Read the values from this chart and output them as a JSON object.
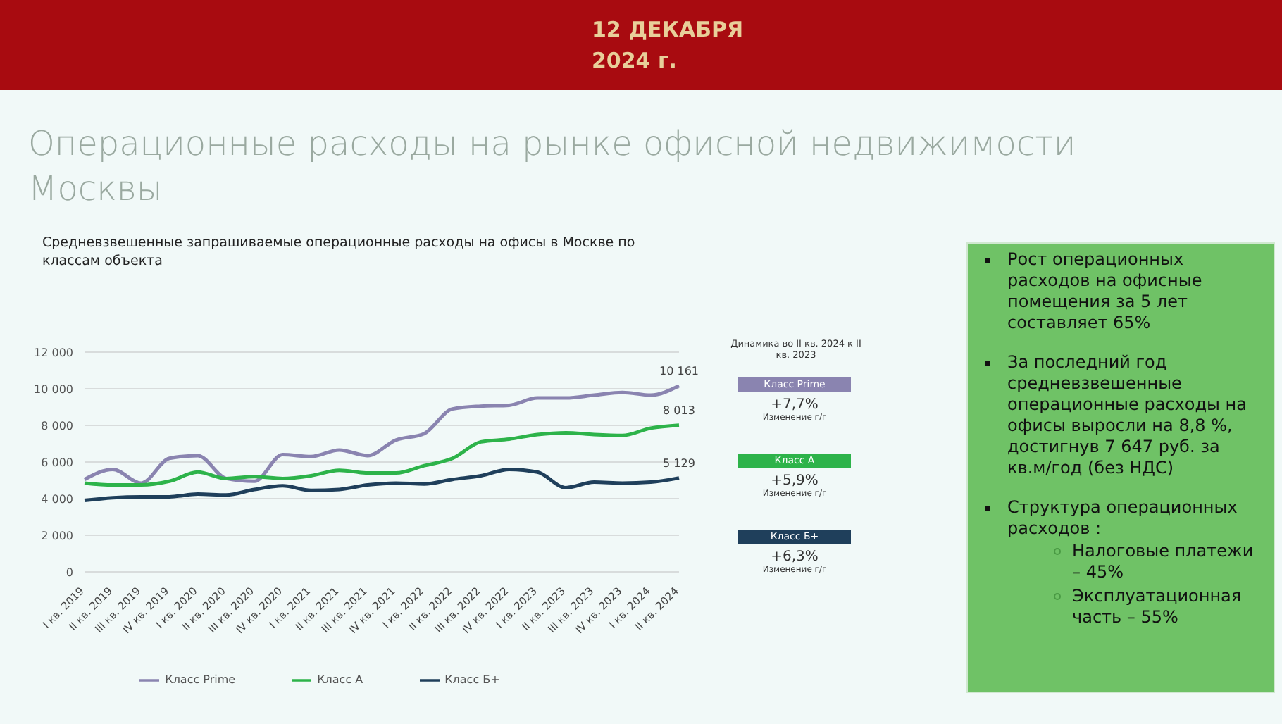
{
  "chart_data": {
    "type": "line",
    "title": "Операционные расходы на рынке офисной недвижимости Москвы",
    "subtitle": "Средневзвешенные запрашиваемые операционные расходы на офисы в Москве по классам объекта",
    "categories": [
      "I кв. 2019",
      "II кв. 2019",
      "III кв. 2019",
      "IV кв. 2019",
      "I кв. 2020",
      "II кв. 2020",
      "III кв. 2020",
      "IV кв. 2020",
      "I кв. 2021",
      "II кв. 2021",
      "III кв. 2021",
      "IV кв. 2021",
      "I кв. 2022",
      "II кв. 2022",
      "III кв. 2022",
      "IV кв. 2022",
      "I кв. 2023",
      "II кв. 2023",
      "III кв. 2023",
      "IV кв. 2023",
      "I кв. 2024",
      "II кв. 2024"
    ],
    "series": [
      {
        "name": "Класс Prime",
        "color": "#8a84b0",
        "values": [
          5050,
          5600,
          4850,
          6200,
          6350,
          5100,
          4950,
          6400,
          6300,
          6650,
          6350,
          7200,
          7550,
          8900,
          9050,
          9100,
          9500,
          9500,
          9650,
          9800,
          9650,
          10161
        ]
      },
      {
        "name": "Класс А",
        "color": "#2db34a",
        "values": [
          4850,
          4750,
          4750,
          4950,
          5450,
          5100,
          5200,
          5100,
          5250,
          5550,
          5400,
          5400,
          5800,
          6200,
          7100,
          7250,
          7500,
          7600,
          7500,
          7450,
          7850,
          8013
        ]
      },
      {
        "name": "Класс Б+",
        "color": "#1f3f5b",
        "values": [
          3900,
          4050,
          4100,
          4100,
          4250,
          4200,
          4500,
          4700,
          4450,
          4500,
          4750,
          4850,
          4800,
          5050,
          5250,
          5600,
          5450,
          4600,
          4900,
          4850,
          4900,
          5129
        ]
      }
    ],
    "ylim": [
      0,
      12000
    ],
    "yticks": [
      {
        "value": 0,
        "label": "0"
      },
      {
        "value": 2000,
        "label": "2 000"
      },
      {
        "value": 4000,
        "label": "4 000"
      },
      {
        "value": 6000,
        "label": "6 000"
      },
      {
        "value": 8000,
        "label": "8 000"
      },
      {
        "value": 10000,
        "label": "10 000"
      },
      {
        "value": 12000,
        "label": "12 000"
      }
    ],
    "grid": "y",
    "legend": "bottom",
    "marker": "none",
    "line_style": "solid",
    "annotations": [
      "12 ДЕКАБРЯ 2024 г.",
      "Динамика во II кв. 2024 к II кв. 2023",
      "+7,7%",
      "Изменение г/г",
      "+5,9%",
      "Изменение г/г",
      "+6,3%",
      "Изменение г/г",
      "Рост операционных расходов на офисные помещения за 5 лет составляет 65%",
      "За последний год средневзвешенные операционные расходы на офисы выросли на 8,8 %, достигнув 7 647 руб. за кв.м/год (без НДС)",
      "Структура операционных расходов :",
      "Налоговые платежи – 45%",
      "Эксплуатационная часть – 55%",
      {
        "text": "10 161",
        "x": "II кв. 2024",
        "y": 10161
      },
      {
        "text": "8 013",
        "x": "II кв. 2024",
        "y": 8013
      },
      {
        "text": "5 129",
        "x": "II кв. 2024",
        "y": 5129
      }
    ]
  }
}
